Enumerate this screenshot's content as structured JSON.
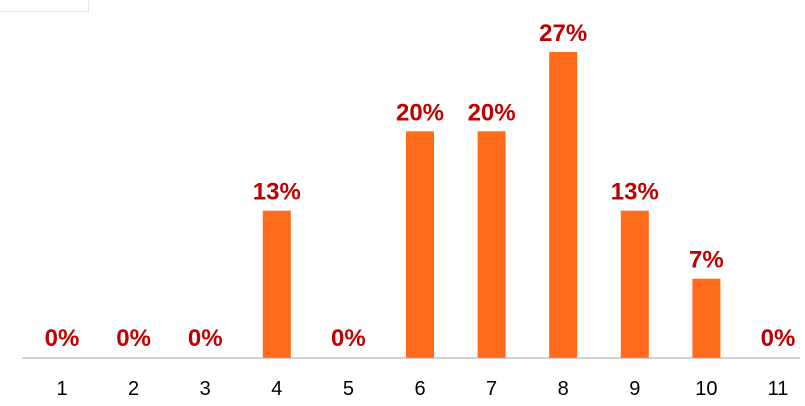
{
  "chart_data": {
    "type": "bar",
    "categories": [
      "1",
      "2",
      "3",
      "4",
      "5",
      "6",
      "7",
      "8",
      "9",
      "10",
      "11"
    ],
    "values": [
      0,
      0,
      0,
      13,
      0,
      20,
      20,
      27,
      13,
      7,
      0
    ],
    "data_labels": [
      "0%",
      "0%",
      "0%",
      "13%",
      "0%",
      "20%",
      "20%",
      "27%",
      "13%",
      "7%",
      "0%"
    ],
    "value_unit": "%",
    "ylim": [
      0,
      27
    ],
    "grid": false,
    "legend": "none",
    "colors": {
      "bar": "#FF6B1A",
      "label": "#C00000",
      "axis": "#A6A6A6"
    }
  }
}
